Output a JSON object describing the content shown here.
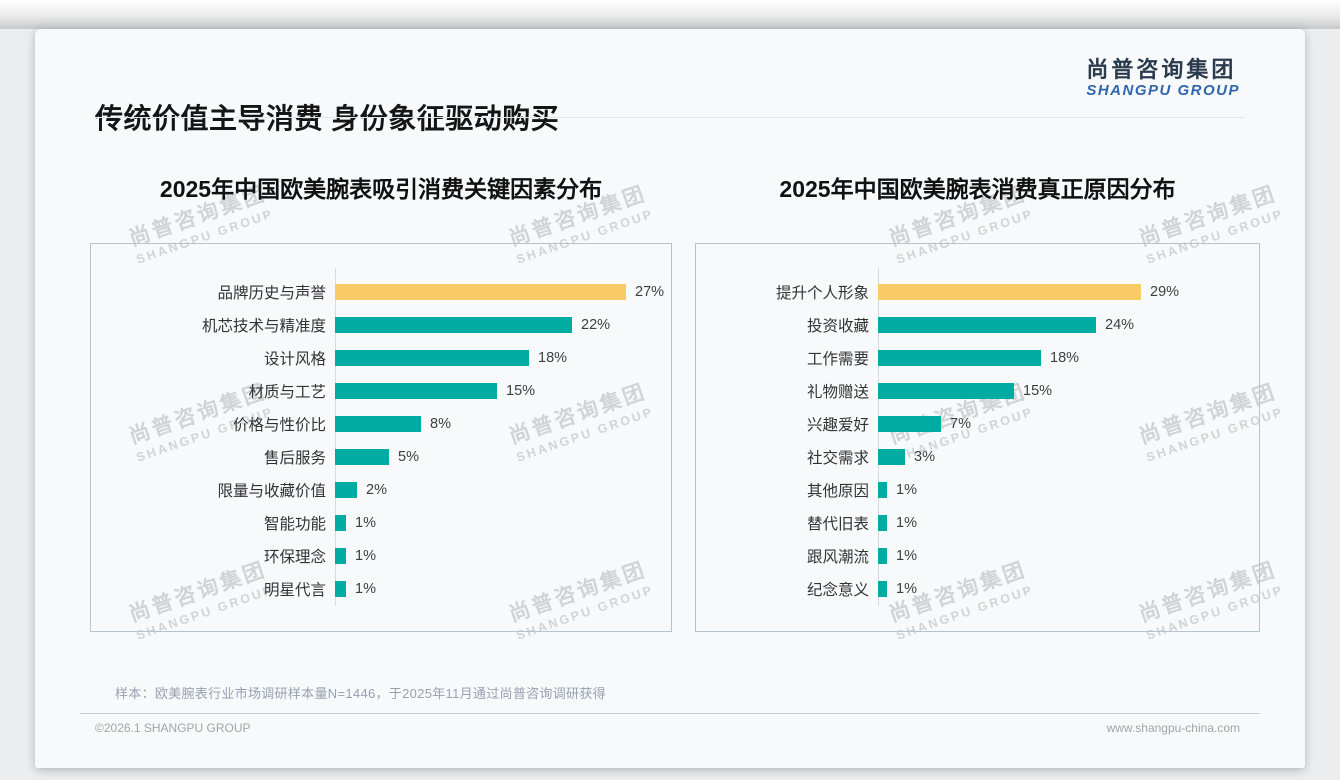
{
  "page": {
    "main_title": "传统价值主导消费 身份象征驱动购买",
    "sample_note": "样本：欧美腕表行业市场调研样本量N=1446，于2025年11月通过尚普咨询调研获得",
    "footer_left": "©2026.1 SHANGPU GROUP",
    "footer_right": "www.shangpu-china.com"
  },
  "logo": {
    "cn": "尚普咨询集团",
    "en": "SHANGPU GROUP"
  },
  "watermark": {
    "line1": "尚普咨询集团",
    "line2": "SHANGPU GROUP"
  },
  "colors": {
    "highlight_bar": "#F9CB64",
    "bar": "#00ACA1",
    "logo_cn": "#2B3B4E",
    "logo_en": "#2F66AD"
  },
  "chart_data": [
    {
      "type": "bar",
      "orientation": "horizontal",
      "title": "2025年中国欧美腕表吸引消费关键因素分布",
      "categories": [
        "品牌历史与声誉",
        "机芯技术与精准度",
        "设计风格",
        "材质与工艺",
        "价格与性价比",
        "售后服务",
        "限量与收藏价值",
        "智能功能",
        "环保理念",
        "明星代言"
      ],
      "values": [
        27,
        22,
        18,
        15,
        8,
        5,
        2,
        1,
        1,
        1
      ],
      "labels": [
        "27%",
        "22%",
        "18%",
        "15%",
        "8%",
        "5%",
        "2%",
        "1%",
        "1%",
        "1%"
      ],
      "highlight_index": 0,
      "unit": "%",
      "xlim": [
        0,
        30
      ],
      "grid": false,
      "legend": false
    },
    {
      "type": "bar",
      "orientation": "horizontal",
      "title": "2025年中国欧美腕表消费真正原因分布",
      "categories": [
        "提升个人形象",
        "投资收藏",
        "工作需要",
        "礼物赠送",
        "兴趣爱好",
        "社交需求",
        "其他原因",
        "替代旧表",
        "跟风潮流",
        "纪念意义"
      ],
      "values": [
        29,
        24,
        18,
        15,
        7,
        3,
        1,
        1,
        1,
        1
      ],
      "labels": [
        "29%",
        "24%",
        "18%",
        "15%",
        "7%",
        "3%",
        "1%",
        "1%",
        "1%",
        "1%"
      ],
      "highlight_index": 0,
      "unit": "%",
      "xlim": [
        0,
        32
      ],
      "grid": false,
      "legend": false
    }
  ]
}
